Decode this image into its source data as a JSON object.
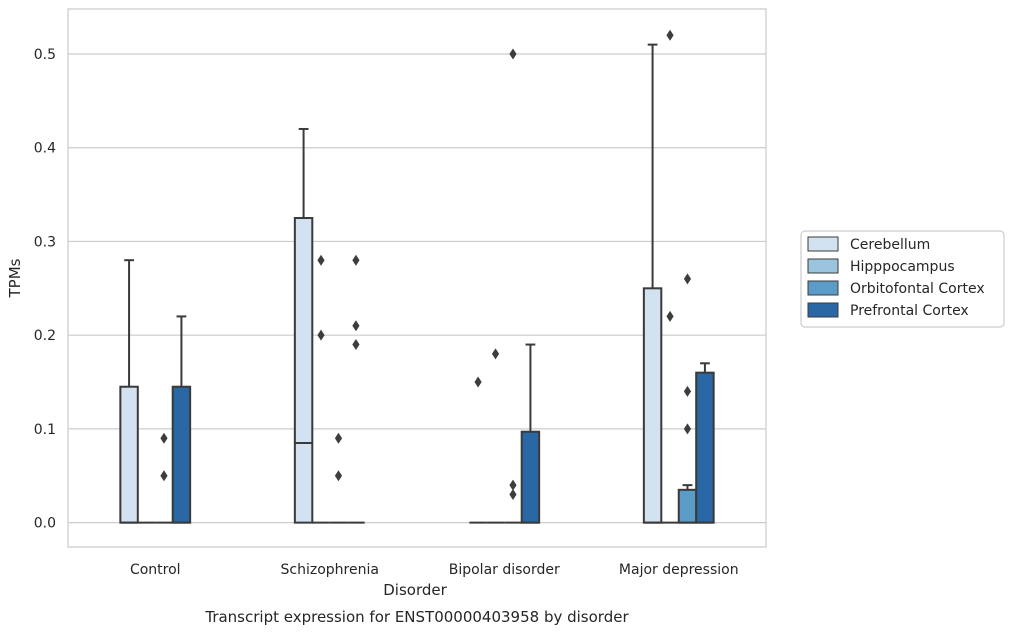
{
  "chart_data": {
    "type": "box",
    "title": "Transcript expression for ENST00000403958 by disorder",
    "xlabel": "Disorder",
    "ylabel": "TPMs",
    "ylim": [
      -0.026,
      0.548
    ],
    "yticks": [
      "0.0",
      "0.1",
      "0.2",
      "0.3",
      "0.4",
      "0.5"
    ],
    "grid": true,
    "legend_position": "right",
    "categories": [
      "Control",
      "Schizophrenia",
      "Bipolar disorder",
      "Major depression"
    ],
    "series": [
      {
        "name": "Cerebellum",
        "color": "#d3e2f1",
        "boxes": [
          {
            "q1": 0.0,
            "median": 0.0,
            "q3": 0.145,
            "whislo": 0.0,
            "whishi": 0.28,
            "fliers": []
          },
          {
            "q1": 0.0,
            "median": 0.085,
            "q3": 0.325,
            "whislo": 0.0,
            "whishi": 0.42,
            "fliers": []
          },
          {
            "q1": 0.0,
            "median": 0.0,
            "q3": 0.0,
            "whislo": 0.0,
            "whishi": 0.0,
            "fliers": [
              0.15
            ]
          },
          {
            "q1": 0.0,
            "median": 0.0,
            "q3": 0.25,
            "whislo": 0.0,
            "whishi": 0.51,
            "fliers": []
          }
        ]
      },
      {
        "name": "Hipppocampus",
        "color": "#9bc5df",
        "boxes": [
          {
            "q1": 0.0,
            "median": 0.0,
            "q3": 0.0,
            "whislo": 0.0,
            "whishi": 0.0,
            "fliers": []
          },
          {
            "q1": 0.0,
            "median": 0.0,
            "q3": 0.0,
            "whislo": 0.0,
            "whishi": 0.0,
            "fliers": [
              0.2,
              0.28
            ]
          },
          {
            "q1": 0.0,
            "median": 0.0,
            "q3": 0.0,
            "whislo": 0.0,
            "whishi": 0.0,
            "fliers": [
              0.18
            ]
          },
          {
            "q1": 0.0,
            "median": 0.0,
            "q3": 0.0,
            "whislo": 0.0,
            "whishi": 0.0,
            "fliers": [
              0.22,
              0.52
            ]
          }
        ]
      },
      {
        "name": "Orbitofontal Cortex",
        "color": "#5a9bc8",
        "boxes": [
          {
            "q1": 0.0,
            "median": 0.0,
            "q3": 0.0,
            "whislo": 0.0,
            "whishi": 0.0,
            "fliers": [
              0.05,
              0.09
            ]
          },
          {
            "q1": 0.0,
            "median": 0.0,
            "q3": 0.0,
            "whislo": 0.0,
            "whishi": 0.0,
            "fliers": [
              0.05,
              0.09
            ]
          },
          {
            "q1": 0.0,
            "median": 0.0,
            "q3": 0.0,
            "whislo": 0.0,
            "whishi": 0.0,
            "fliers": [
              0.03,
              0.04,
              0.5
            ]
          },
          {
            "q1": 0.0,
            "median": 0.0,
            "q3": 0.035,
            "whislo": 0.0,
            "whishi": 0.04,
            "fliers": [
              0.1,
              0.14,
              0.26
            ]
          }
        ]
      },
      {
        "name": "Prefrontal Cortex",
        "color": "#2a67a5",
        "boxes": [
          {
            "q1": 0.0,
            "median": 0.0,
            "q3": 0.145,
            "whislo": 0.0,
            "whishi": 0.22,
            "fliers": []
          },
          {
            "q1": 0.0,
            "median": 0.0,
            "q3": 0.0,
            "whislo": 0.0,
            "whishi": 0.0,
            "fliers": [
              0.19,
              0.21,
              0.28
            ]
          },
          {
            "q1": 0.0,
            "median": 0.0,
            "q3": 0.097,
            "whislo": 0.0,
            "whishi": 0.19,
            "fliers": []
          },
          {
            "q1": 0.0,
            "median": 0.0,
            "q3": 0.16,
            "whislo": 0.0,
            "whishi": 0.17,
            "fliers": []
          }
        ]
      }
    ]
  }
}
